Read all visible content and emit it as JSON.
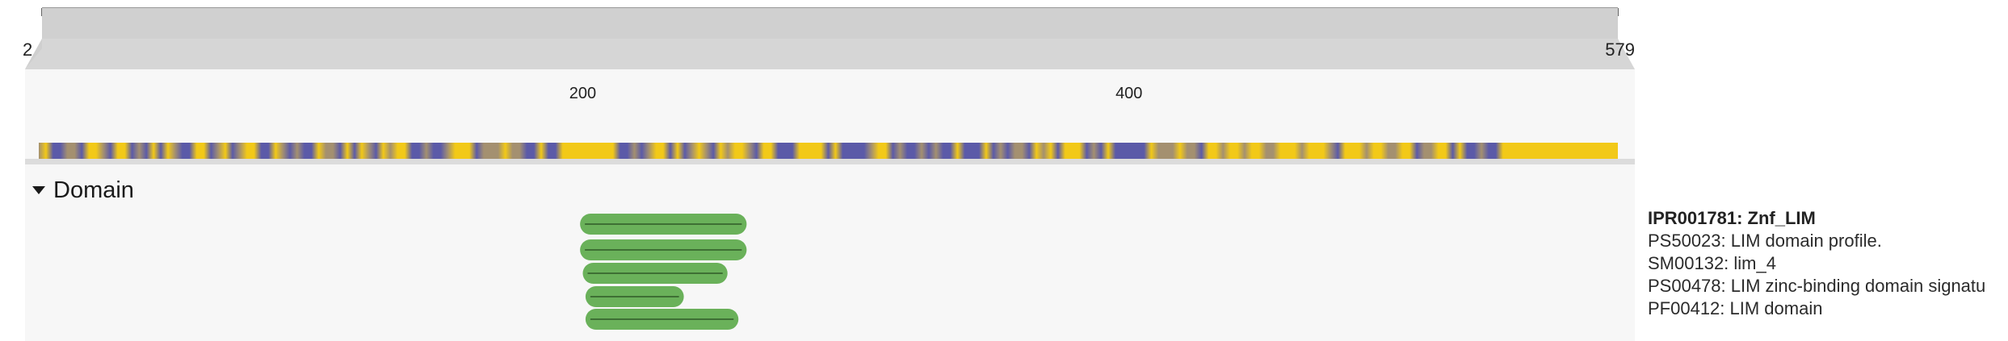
{
  "ruler": {
    "start": "2",
    "end": "579",
    "range": [
      2,
      579
    ],
    "ticks": [
      "50",
      "100",
      "150",
      "200",
      "250",
      "300",
      "350",
      "400",
      "450",
      "500",
      "550"
    ],
    "tick_values": [
      50,
      100,
      150,
      200,
      250,
      300,
      350,
      400,
      450,
      500,
      550
    ]
  },
  "zoom_ruler": {
    "labels": [
      "200",
      "400"
    ],
    "values": [
      200,
      400
    ]
  },
  "hydropathy": {
    "colors": {
      "low": "#5b5aa8",
      "high": "#f2c918"
    }
  },
  "domain_track": {
    "title": "Domain",
    "expanded": true,
    "color": "#6ab15a",
    "features": [
      {
        "accession": "PS50023",
        "start": 199,
        "end": 260
      },
      {
        "accession": "SM00132",
        "start": 199,
        "end": 260
      },
      {
        "accession": "PS00478",
        "start": 200,
        "end": 253
      },
      {
        "accession": "PF00412",
        "start": 201,
        "end": 237
      },
      {
        "accession": "PF00412b",
        "start": 201,
        "end": 257
      }
    ]
  },
  "labels": {
    "entry": "IPR001781: Znf_LIM",
    "items": [
      "PS50023: LIM domain profile.",
      "SM00132: lim_4",
      "PS00478: LIM zinc-binding domain signatu",
      "PF00412: LIM domain"
    ]
  }
}
